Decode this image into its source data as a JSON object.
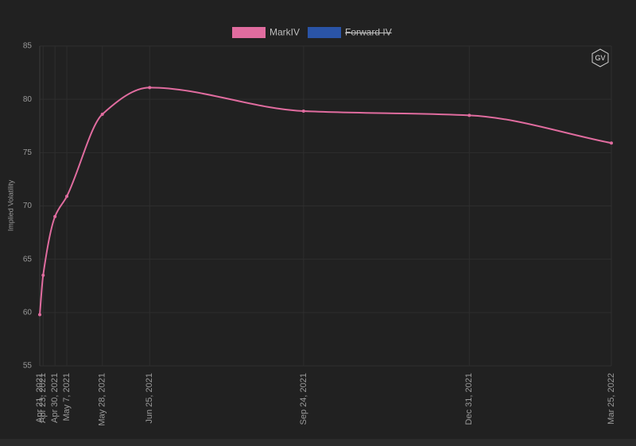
{
  "chart_data": {
    "type": "line",
    "y_label": "Implied Volatility",
    "logo": "GV",
    "x": [
      "Apr 21, 2021",
      "Apr 23, 2021",
      "Apr 30, 2021",
      "May 7, 2021",
      "May 28, 2021",
      "Jun 25, 2021",
      "Sep 24, 2021",
      "Dec 31, 2021",
      "Mar 25, 2022"
    ],
    "series": [
      {
        "name": "MarkIV",
        "color": "#e06c9f",
        "values": [
          59.8,
          63.5,
          69.0,
          70.9,
          78.6,
          81.1,
          78.9,
          78.5,
          75.9
        ]
      },
      {
        "name": "Forward IV",
        "color": "#2a54a6",
        "hidden": true,
        "values": [
          null,
          null,
          null,
          null,
          null,
          null,
          null,
          null,
          null
        ]
      }
    ],
    "ylim": [
      55,
      85
    ],
    "yticks": [
      55,
      60,
      65,
      70,
      75,
      80,
      85
    ],
    "grid": true,
    "legend": "top"
  }
}
